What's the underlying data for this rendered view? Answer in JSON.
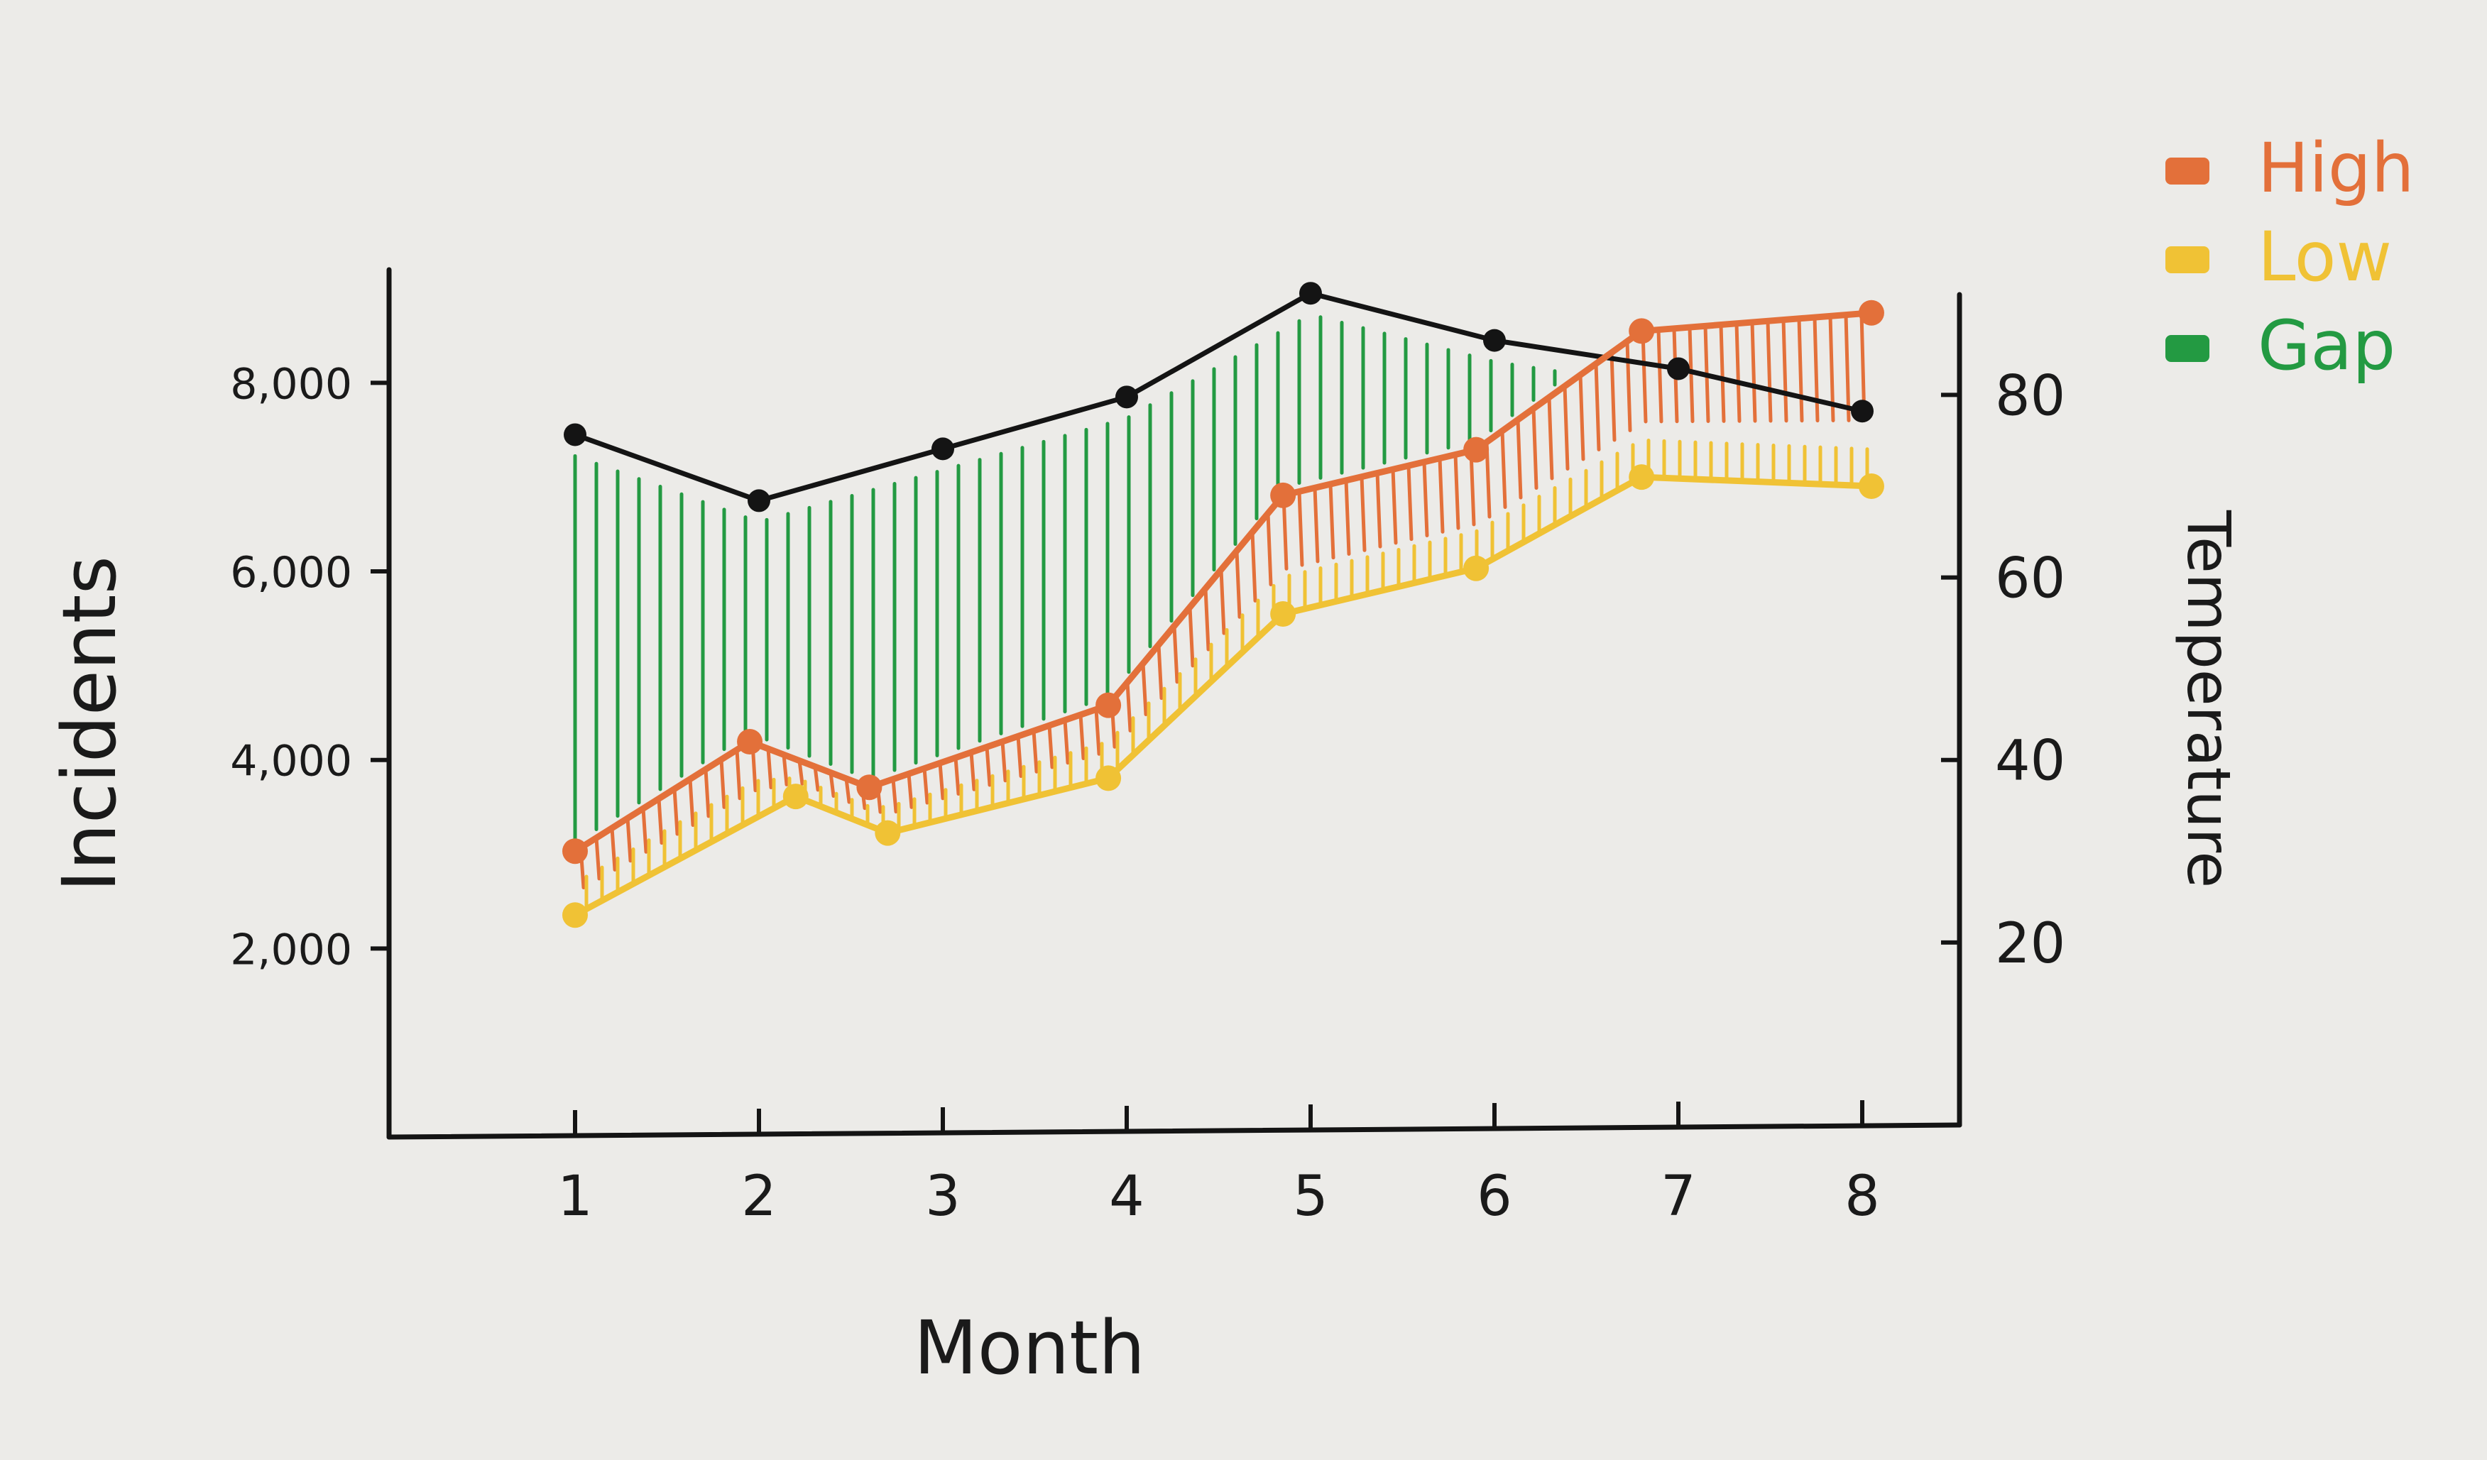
{
  "chart_data": {
    "type": "line",
    "xlabel": "Month",
    "ylabel_left": "Incidents",
    "ylabel_right": "Temperature",
    "x": [
      1,
      2,
      3,
      4,
      5,
      6,
      7,
      8
    ],
    "x_tick_labels": [
      "1",
      "2",
      "3",
      "4",
      "5",
      "6",
      "7",
      "8"
    ],
    "y_left_ticks": [
      2000,
      4000,
      6000,
      8000
    ],
    "y_left_tick_labels": [
      "2,000",
      "4,000",
      "6,000",
      "8,000"
    ],
    "y_left_lim": [
      0,
      9200
    ],
    "y_right_ticks": [
      20,
      40,
      60,
      80
    ],
    "y_right_tick_labels": [
      "20",
      "40",
      "60",
      "80"
    ],
    "y_right_lim": [
      0,
      91
    ],
    "grid": false,
    "legend_position": "top-right",
    "series": [
      {
        "name": "",
        "axis": "left",
        "color": "#141414",
        "x": [
          1,
          2,
          3,
          4,
          5,
          6,
          7,
          8
        ],
        "values": [
          7450,
          6750,
          7300,
          7850,
          8950,
          8450,
          8150,
          7700
        ]
      },
      {
        "name": "High",
        "axis": "right",
        "color": "#e3703a",
        "x": [
          1,
          1.95,
          2.6,
          3.9,
          4.85,
          5.9,
          6.8,
          8.05
        ],
        "values": [
          30,
          42,
          37,
          46,
          69,
          74,
          87,
          89
        ]
      },
      {
        "name": "Low",
        "axis": "right",
        "color": "#f0c235",
        "x": [
          1,
          2.2,
          2.7,
          3.9,
          4.85,
          5.9,
          6.8,
          8.05
        ],
        "values": [
          23,
          36,
          32,
          38,
          56,
          61,
          71,
          70
        ]
      }
    ],
    "fills": [
      {
        "name": "Gap",
        "color": "#239a42"
      },
      {
        "name": "High",
        "color": "#e3703a"
      },
      {
        "name": "Low",
        "color": "#f0c235"
      }
    ],
    "legend": [
      {
        "name": "High",
        "color": "#e3703a"
      },
      {
        "name": "Low",
        "color": "#f0c235"
      },
      {
        "name": "Gap",
        "color": "#239a42"
      }
    ]
  }
}
